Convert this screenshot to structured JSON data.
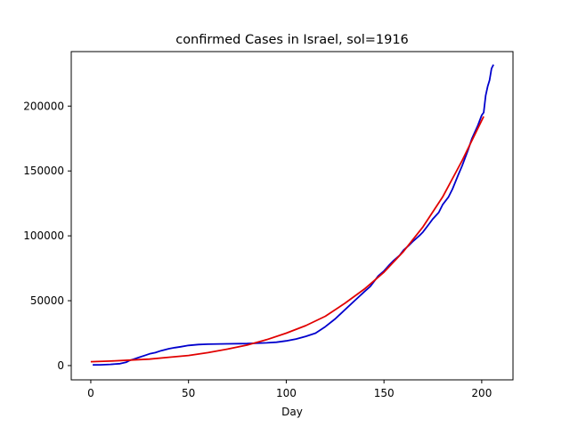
{
  "chart_data": {
    "type": "line",
    "title": "confirmed Cases in Israel, sol=1916",
    "xlabel": "Day",
    "ylabel": "",
    "xlim": [
      -10,
      216
    ],
    "ylim": [
      -11000,
      242000
    ],
    "xticks": [
      0,
      50,
      100,
      150,
      200
    ],
    "yticks": [
      0,
      50000,
      100000,
      150000,
      200000
    ],
    "grid": false,
    "series": [
      {
        "color": "#0000cd",
        "x": [
          1,
          5,
          10,
          15,
          18,
          20,
          22,
          25,
          28,
          30,
          33,
          36,
          40,
          43,
          46,
          50,
          55,
          60,
          70,
          80,
          90,
          95,
          100,
          105,
          110,
          115,
          120,
          125,
          130,
          135,
          140,
          143,
          145,
          147,
          150,
          153,
          155,
          158,
          160,
          163,
          165,
          168,
          170,
          173,
          175,
          178,
          180,
          183,
          185,
          188,
          190,
          193,
          195,
          198,
          200,
          201,
          202,
          203,
          204,
          205,
          206
        ],
        "y": [
          500,
          600,
          900,
          1500,
          2500,
          4000,
          5000,
          6500,
          8000,
          9000,
          10000,
          11500,
          13000,
          13800,
          14500,
          15500,
          16200,
          16500,
          16800,
          17000,
          17500,
          18000,
          19000,
          20500,
          22500,
          25000,
          30000,
          36000,
          43000,
          50000,
          57000,
          61000,
          65000,
          69000,
          73000,
          78000,
          81000,
          85000,
          89000,
          93000,
          96000,
          100000,
          103000,
          109000,
          113000,
          118000,
          124000,
          130000,
          136000,
          147000,
          154000,
          166000,
          175000,
          185000,
          193000,
          195000,
          208000,
          215000,
          220000,
          229000,
          232000
        ]
      },
      {
        "color": "#e10000",
        "x": [
          0,
          10,
          20,
          30,
          40,
          50,
          60,
          70,
          80,
          90,
          100,
          110,
          120,
          130,
          140,
          150,
          160,
          170,
          180,
          190,
          200,
          201
        ],
        "y": [
          3000,
          3500,
          4200,
          5000,
          6400,
          7800,
          10000,
          12700,
          15800,
          20000,
          25000,
          30800,
          38000,
          48000,
          59000,
          72000,
          88000,
          107000,
          130000,
          158000,
          189000,
          192000
        ]
      }
    ]
  }
}
